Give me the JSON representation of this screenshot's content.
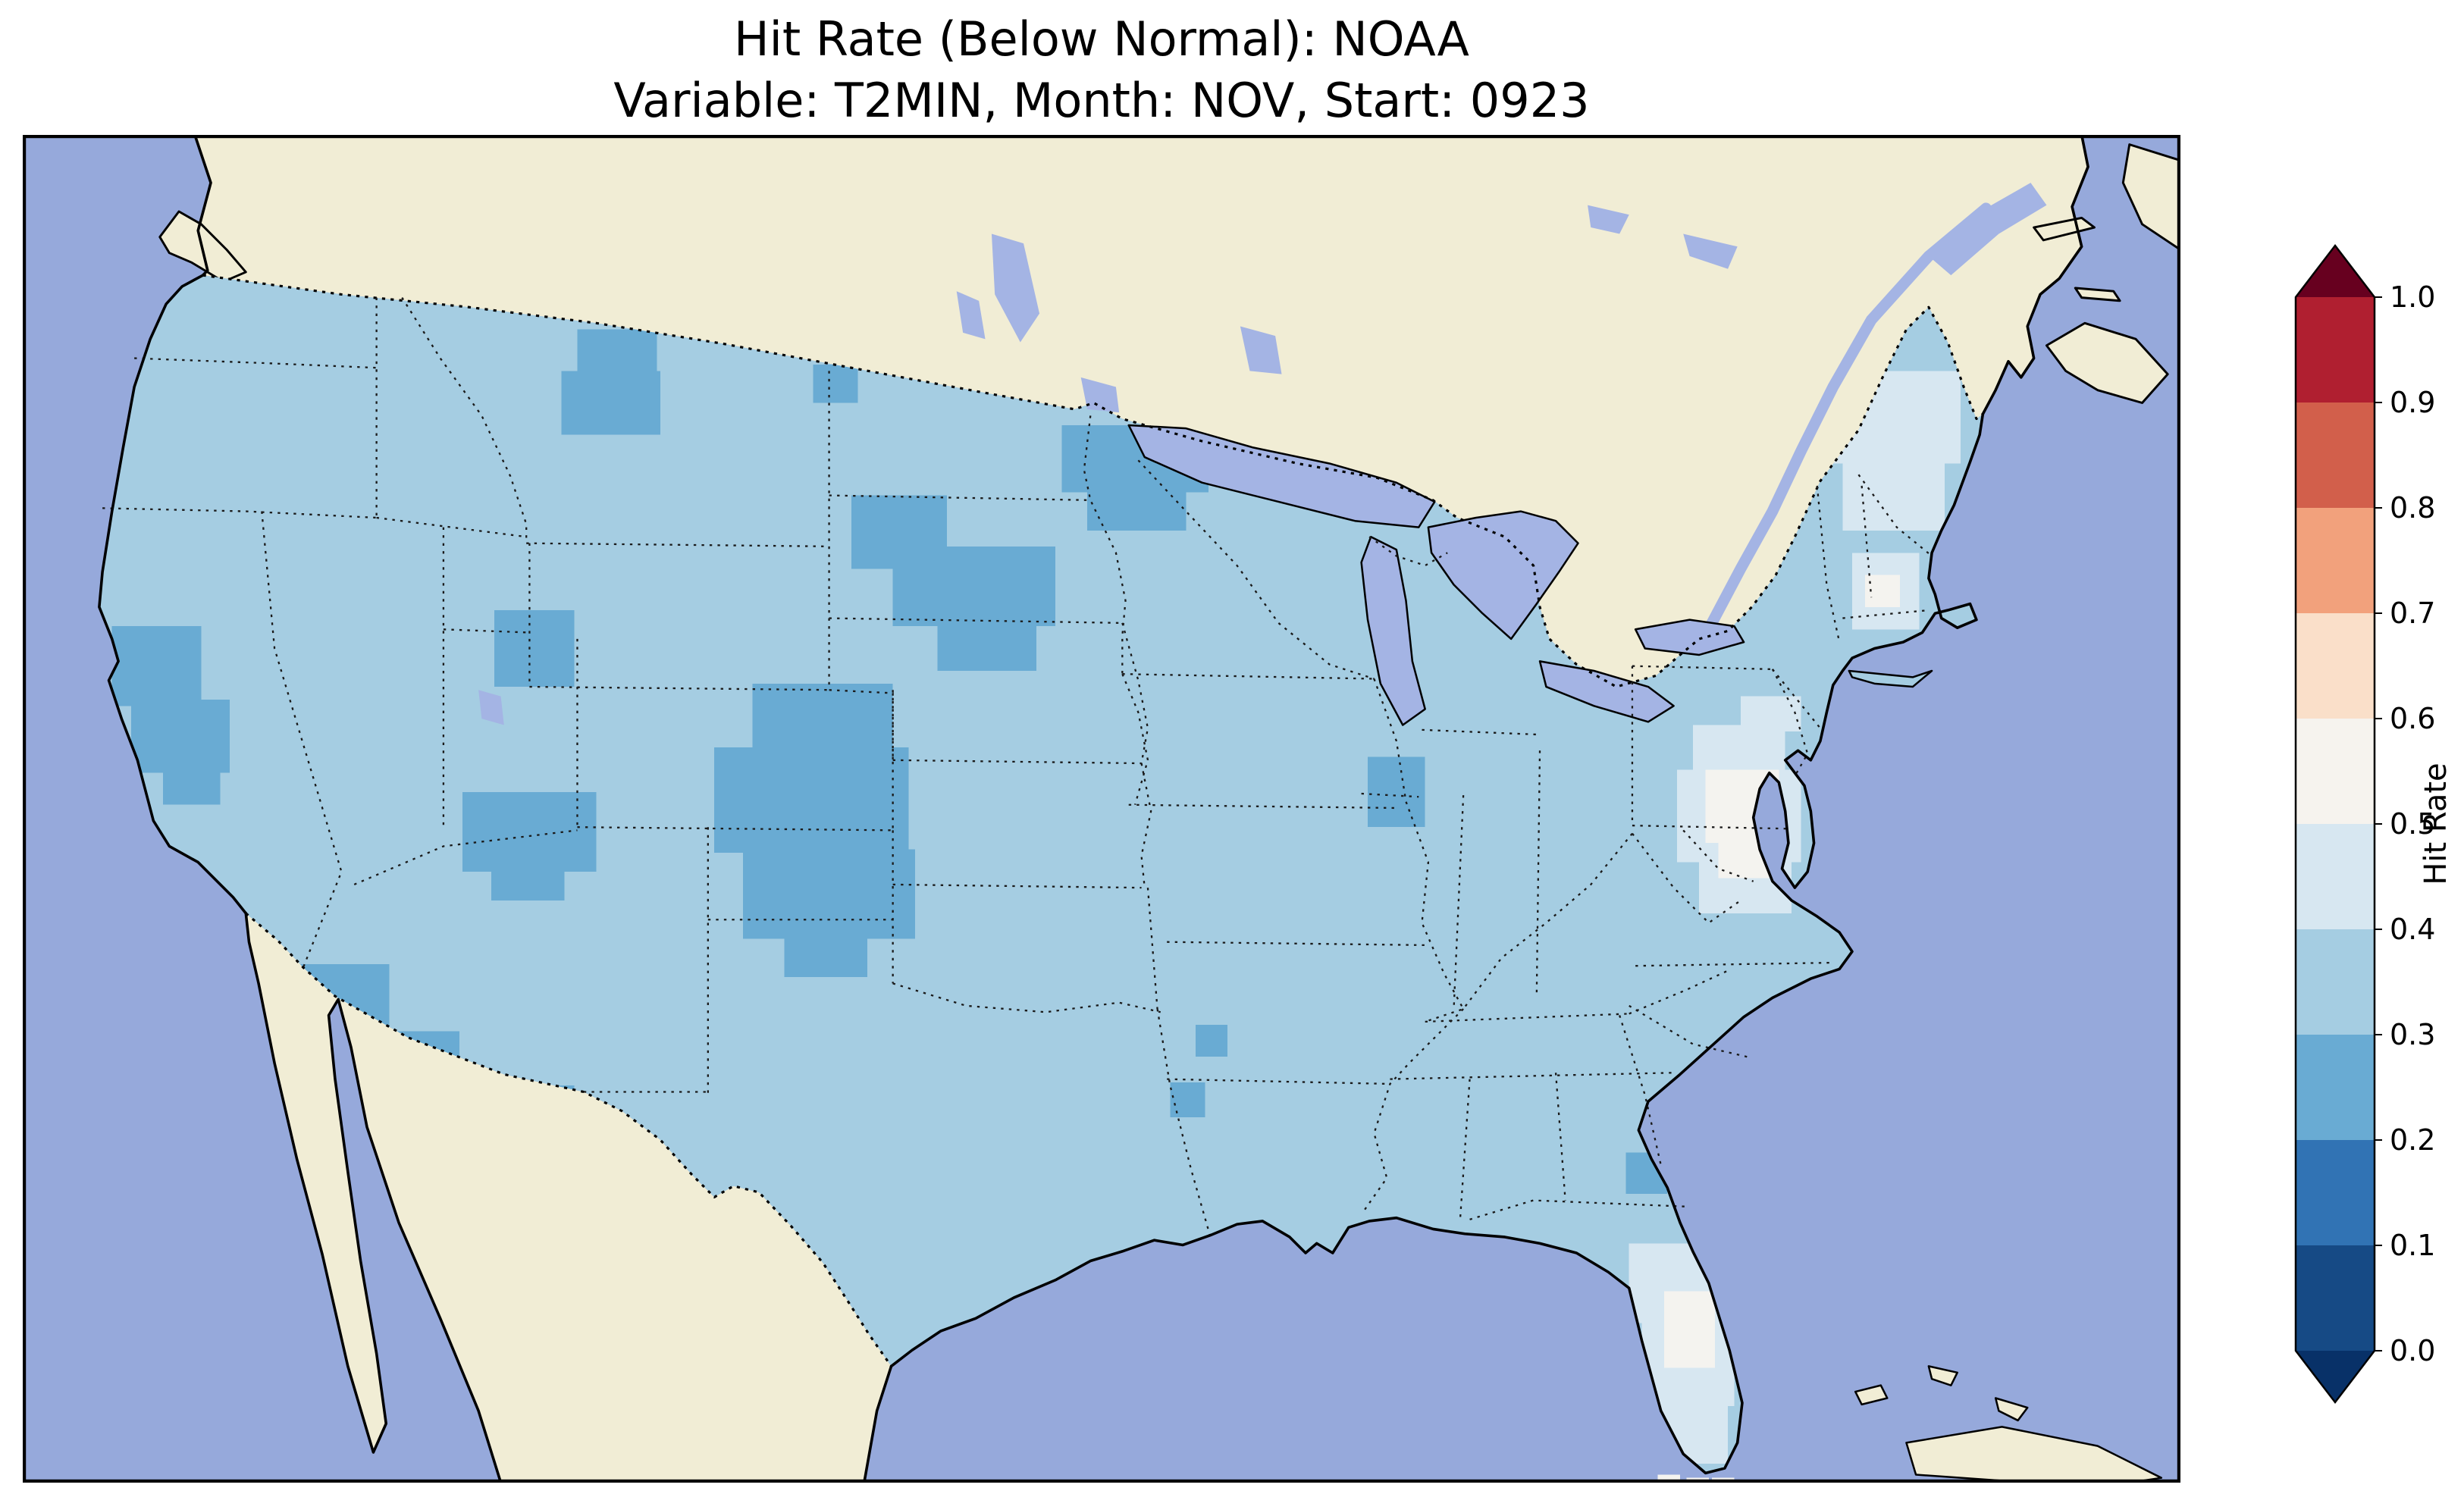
{
  "title": {
    "line1": "Hit Rate (Below Normal): NOAA",
    "line2": "Variable: T2MIN, Month: NOV, Start: 0923"
  },
  "colorbar": {
    "label": "Hit Rate",
    "tick_labels": [
      "0.0",
      "0.1",
      "0.2",
      "0.3",
      "0.4",
      "0.5",
      "0.6",
      "0.7",
      "0.8",
      "0.9",
      "1.0"
    ],
    "bin_colors_bottom_to_top": [
      "#164a85",
      "#3173b4",
      "#69abd3",
      "#a5cde2",
      "#d7e7f1",
      "#f6f3ee",
      "#fadfc9",
      "#f2a17c",
      "#d25f4b",
      "#b01f30"
    ],
    "extend_under_color": "#083168",
    "extend_over_color": "#67001f"
  },
  "map": {
    "colors": {
      "ocean": "#96a9db",
      "land": "#f1edd5",
      "lake": "#a4b4e4",
      "us_base": "#a5cde2",
      "patch_dark": "#69abd3",
      "patch_pale": "#d7e7f1",
      "patch_white": "#f4f3ef"
    },
    "patches": {
      "dark": [
        [
          348,
          122,
          50,
          28
        ],
        [
          338,
          148,
          62,
          40
        ],
        [
          296,
          298,
          50,
          48
        ],
        [
          652,
          182,
          92,
          42
        ],
        [
          668,
          222,
          62,
          26
        ],
        [
          520,
          226,
          60,
          46
        ],
        [
          546,
          258,
          102,
          50
        ],
        [
          574,
          306,
          62,
          30
        ],
        [
          458,
          344,
          88,
          52
        ],
        [
          434,
          384,
          122,
          66
        ],
        [
          452,
          448,
          108,
          56
        ],
        [
          478,
          502,
          52,
          26
        ],
        [
          56,
          308,
          56,
          50
        ],
        [
          68,
          354,
          62,
          46
        ],
        [
          88,
          398,
          36,
          22
        ],
        [
          276,
          412,
          84,
          50
        ],
        [
          294,
          458,
          46,
          22
        ],
        [
          172,
          520,
          58,
          48
        ],
        [
          186,
          562,
          88,
          56
        ],
        [
          214,
          614,
          102,
          40
        ],
        [
          268,
          596,
          78,
          60
        ],
        [
          310,
          642,
          36,
          24
        ],
        [
          844,
          390,
          36,
          44
        ],
        [
          1006,
          638,
          26,
          26
        ],
        [
          720,
          594,
          22,
          22
        ],
        [
          736,
          558,
          20,
          20
        ],
        [
          496,
          144,
          28,
          24
        ]
      ],
      "pale": [
        [
          1048,
          370,
          58,
          32
        ],
        [
          1038,
          398,
          78,
          58
        ],
        [
          1052,
          452,
          58,
          36
        ],
        [
          1078,
          352,
          38,
          22
        ],
        [
          1128,
          148,
          88,
          58
        ],
        [
          1142,
          202,
          64,
          46
        ],
        [
          1148,
          262,
          42,
          48
        ],
        [
          1008,
          695,
          62,
          50
        ],
        [
          1016,
          742,
          58,
          55
        ],
        [
          1028,
          795,
          42,
          38
        ]
      ],
      "white": [
        [
          1056,
          398,
          46,
          46
        ],
        [
          1064,
          440,
          32,
          26
        ],
        [
          1156,
          276,
          22,
          20
        ],
        [
          1030,
          725,
          32,
          48
        ]
      ],
      "keys_white": [
        [
          1026,
          840,
          14,
          11
        ],
        [
          1044,
          842,
          14,
          11
        ],
        [
          1060,
          842,
          14,
          11
        ]
      ]
    }
  },
  "chart_data": {
    "type": "heatmap",
    "title": "Hit Rate (Below Normal): NOAA",
    "subtitle": "Variable: T2MIN, Month: NOV, Start: 0923",
    "geography": "Contiguous United States (gridded cells), surrounded by Canada, Mexico, Atlantic/Pacific/Gulf water",
    "colorbar_label": "Hit Rate",
    "colorbar_range": [
      0.0,
      1.0
    ],
    "colorbar_bin_width": 0.1,
    "colorbar_extends": "both",
    "colormap": "RdBu reversed (blue = low hit rate, red = high hit rate)",
    "legend_position": "right vertical colorbar",
    "regions": [
      {
        "region": "Most of the contiguous US",
        "hit_rate_bin": "0.3-0.4"
      },
      {
        "region": "Western Dakotas / Nebraska panhandle / eastern Colorado / western Kansas",
        "hit_rate_bin": "0.2-0.3"
      },
      {
        "region": "Eastern North Dakota / northern Minnesota",
        "hit_rate_bin": "0.2-0.3"
      },
      {
        "region": "North-central Montana",
        "hit_rate_bin": "0.2-0.3"
      },
      {
        "region": "Northern California / northwestern Nevada",
        "hit_rate_bin": "0.2-0.3"
      },
      {
        "region": "Southern Utah",
        "hit_rate_bin": "0.2-0.3"
      },
      {
        "region": "Arizona / western New Mexico",
        "hit_rate_bin": "0.2-0.3"
      },
      {
        "region": "Eastern Wisconsin",
        "hit_rate_bin": "0.2-0.3"
      },
      {
        "region": "Georgia coast (small spot)",
        "hit_rate_bin": "0.2-0.3"
      },
      {
        "region": "Delmarva / Chesapeake (Delaware, Maryland, eastern Virginia)",
        "hit_rate_bin": "0.4-0.6"
      },
      {
        "region": "Florida peninsula",
        "hit_rate_bin": "0.4-0.6"
      },
      {
        "region": "Coastal New England",
        "hit_rate_bin": "0.4-0.5"
      },
      {
        "region": "Maine",
        "hit_rate_bin": "0.4-0.5"
      }
    ],
    "note": "No cells in the red (>0.6) bins are visible; CONUS values span roughly 0.2-0.6."
  }
}
